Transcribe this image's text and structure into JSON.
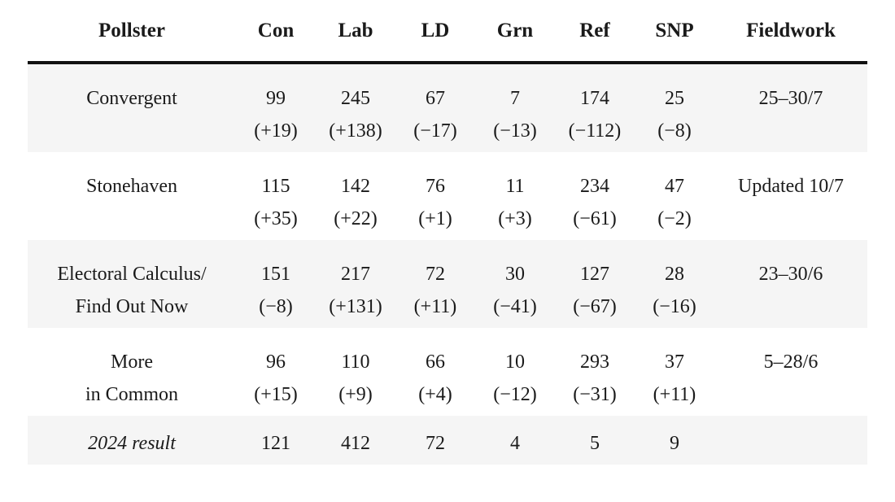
{
  "columns": {
    "pollster": "Pollster",
    "con": "Con",
    "lab": "Lab",
    "ld": "LD",
    "grn": "Grn",
    "ref": "Ref",
    "snp": "SNP",
    "fieldwork": "Fieldwork"
  },
  "rows": [
    {
      "pollster": [
        "Convergent",
        ""
      ],
      "con": [
        "99",
        "(+19)"
      ],
      "lab": [
        "245",
        "(+138)"
      ],
      "ld": [
        "67",
        "(−17)"
      ],
      "grn": [
        "7",
        "(−13)"
      ],
      "ref": [
        "174",
        "(−112)"
      ],
      "snp": [
        "25",
        "(−8)"
      ],
      "fieldwork": "25–30/7"
    },
    {
      "pollster": [
        "Stonehaven",
        ""
      ],
      "con": [
        "115",
        "(+35)"
      ],
      "lab": [
        "142",
        "(+22)"
      ],
      "ld": [
        "76",
        "(+1)"
      ],
      "grn": [
        "11",
        "(+3)"
      ],
      "ref": [
        "234",
        "(−61)"
      ],
      "snp": [
        "47",
        "(−2)"
      ],
      "fieldwork": "Updated 10/7"
    },
    {
      "pollster": [
        "Electoral Calculus/",
        "Find Out Now"
      ],
      "con": [
        "151",
        "(−8)"
      ],
      "lab": [
        "217",
        "(+131)"
      ],
      "ld": [
        "72",
        "(+11)"
      ],
      "grn": [
        "30",
        "(−41)"
      ],
      "ref": [
        "127",
        "(−67)"
      ],
      "snp": [
        "28",
        "(−16)"
      ],
      "fieldwork": "23–30/6"
    },
    {
      "pollster": [
        "More",
        "in Common"
      ],
      "con": [
        "96",
        "(+15)"
      ],
      "lab": [
        "110",
        "(+9)"
      ],
      "ld": [
        "66",
        "(+4)"
      ],
      "grn": [
        "10",
        "(−12)"
      ],
      "ref": [
        "293",
        "(−31)"
      ],
      "snp": [
        "37",
        "(+11)"
      ],
      "fieldwork": "5–28/6"
    }
  ],
  "result_row": {
    "label": "2024 result",
    "con": "121",
    "lab": "412",
    "ld": "72",
    "grn": "4",
    "ref": "5",
    "snp": "9",
    "fieldwork": ""
  },
  "colors": {
    "shaded_row": "#f5f5f5",
    "header_rule": "#111111",
    "text": "#1a1a1a"
  }
}
